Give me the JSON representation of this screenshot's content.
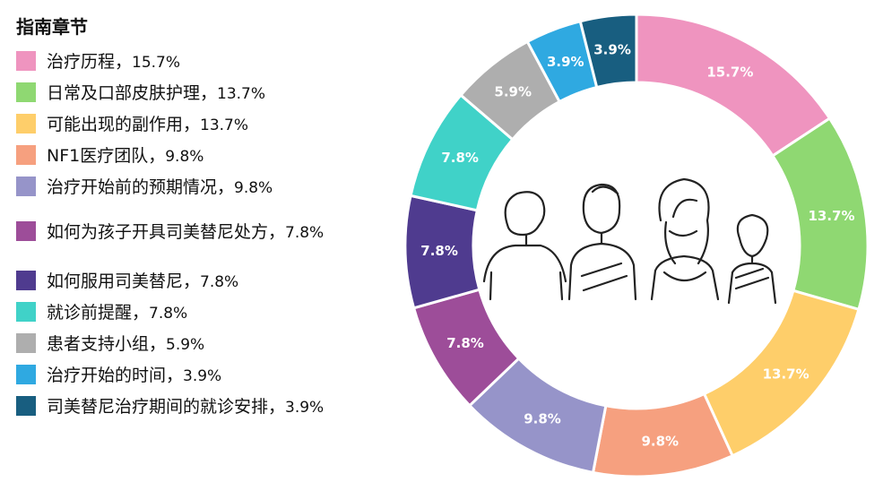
{
  "legend_title": "指南章节",
  "chart_data": {
    "type": "pie",
    "title": "",
    "legend_position": "left",
    "categories": [
      "治疗历程",
      "日常及口部皮肤护理",
      "可能出现的副作用",
      "NF1医疗团队",
      "治疗开始前的预期情况",
      "如何为孩子开具司美替尼处方",
      "如何服用司美替尼",
      "就诊前提醒",
      "患者支持小组",
      "治疗开始的时间",
      "司美替尼治疗期间的就诊安排"
    ],
    "values": [
      15.7,
      13.7,
      13.7,
      9.8,
      9.8,
      7.8,
      7.8,
      7.8,
      5.9,
      3.9,
      3.9
    ],
    "labels": [
      "15.7%",
      "13.7%",
      "13.7%",
      "9.8%",
      "9.8%",
      "7.8%",
      "7.8%",
      "7.8%",
      "5.9%",
      "3.9%",
      "3.9%"
    ],
    "colors": [
      "#ef94bf",
      "#8fd872",
      "#fece6a",
      "#f6a07f",
      "#9694c9",
      "#9d4d99",
      "#4f3b8f",
      "#40d2c8",
      "#aeaeae",
      "#2fa9e1",
      "#185e80"
    ]
  }
}
